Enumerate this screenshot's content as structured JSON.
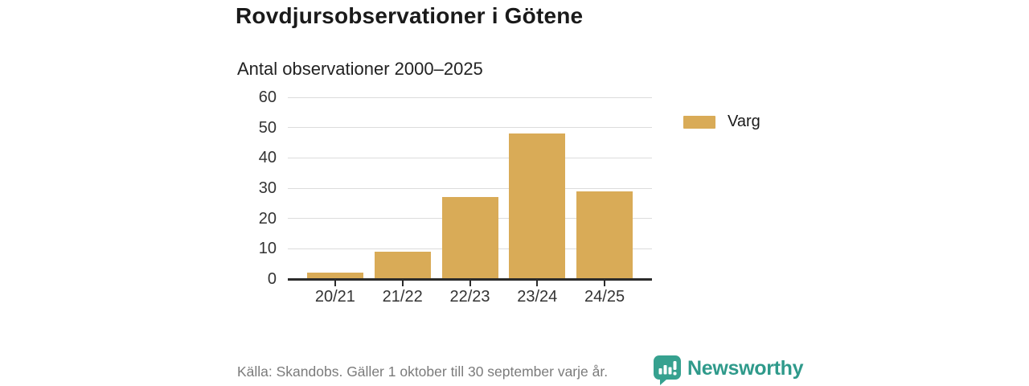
{
  "header": {
    "title": "Rovdjursobservationer i Götene",
    "subtitle": "Antal observationer 2000–2025"
  },
  "legend": {
    "label": "Varg",
    "swatch_color": "#d9ab57"
  },
  "footer": {
    "source": "Källa: Skandobs. Gäller 1 oktober till 30 september varje år.",
    "brand": "Newsworthy",
    "brand_color": "#2f9a8b",
    "brand_icon_color": "#36a18f",
    "brand_icon": "bar-chart-speech-bubble-icon"
  },
  "chart_data": {
    "type": "bar",
    "title": "Rovdjursobservationer i Götene",
    "subtitle": "Antal observationer 2000–2025",
    "categories": [
      "20/21",
      "21/22",
      "22/23",
      "23/24",
      "24/25"
    ],
    "series": [
      {
        "name": "Varg",
        "values": [
          2,
          9,
          27,
          48,
          29
        ],
        "color": "#d9ab57"
      }
    ],
    "xlabel": "",
    "ylabel": "",
    "ylim": [
      0,
      60
    ],
    "yticks": [
      0,
      10,
      20,
      30,
      40,
      50,
      60
    ],
    "grid": true,
    "legend_position": "right",
    "gridline_color": "#dcdcdc",
    "axis_color": "#2b2b2b"
  }
}
